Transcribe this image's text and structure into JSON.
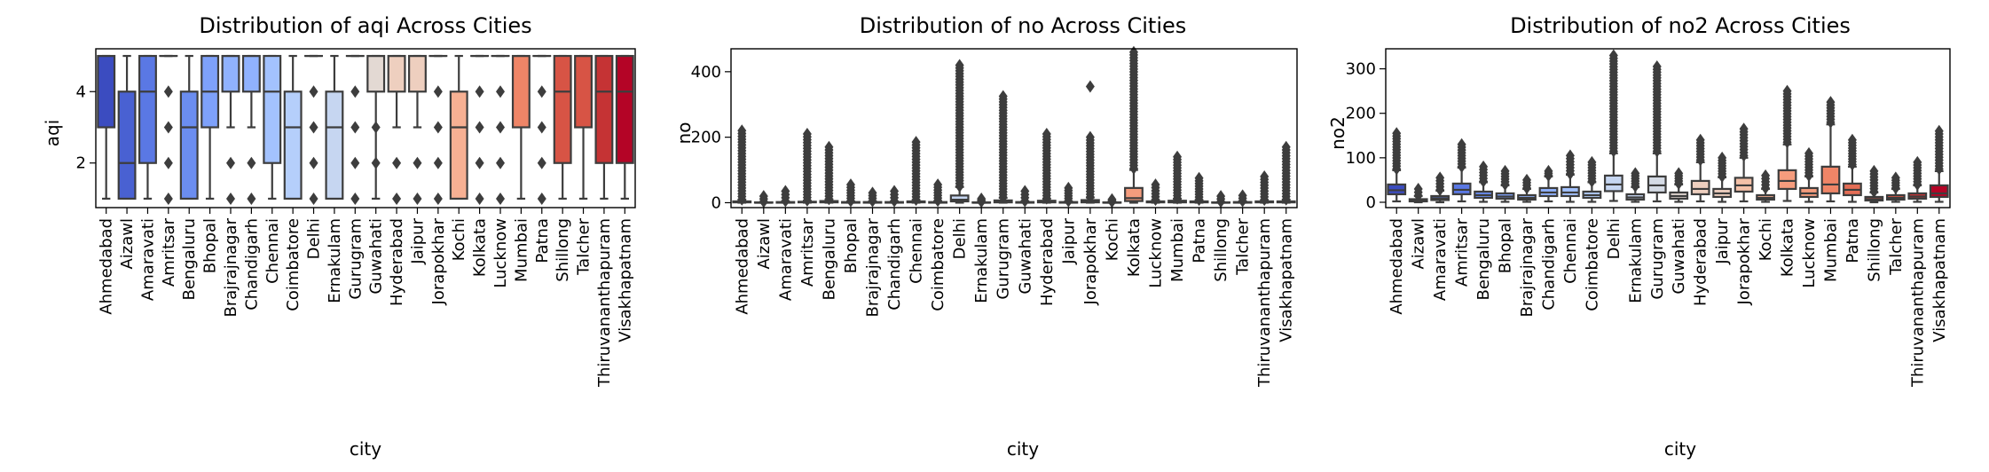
{
  "colors": {
    "box_edge": "#3d3d3d",
    "flier": "#3d3d3d",
    "palette": [
      "#3b4cc0",
      "#4961d2",
      "#5a78e4",
      "#6b8df0",
      "#7ea1fa",
      "#90b2fe",
      "#a3c2fe",
      "#b5cffb",
      "#c6d6f1",
      "#d5dbe5",
      "#e3d9d3",
      "#eecfbf",
      "#f4c1a8",
      "#f7b093",
      "#f59c7d",
      "#ef8567",
      "#e46e56",
      "#d75445",
      "#c53334",
      "#b40426"
    ]
  },
  "cities": [
    "Ahmedabad",
    "Aizawl",
    "Amaravati",
    "Amritsar",
    "Bengaluru",
    "Bhopal",
    "Brajrajnagar",
    "Chandigarh",
    "Chennai",
    "Coimbatore",
    "Delhi",
    "Ernakulam",
    "Gurugram",
    "Guwahati",
    "Hyderabad",
    "Jaipur",
    "Jorapokhar",
    "Kochi",
    "Kolkata",
    "Lucknow",
    "Mumbai",
    "Patna",
    "Shillong",
    "Talcher",
    "Thiruvananthapuram",
    "Visakhapatnam"
  ],
  "chart_data": [
    {
      "type": "box",
      "title": "Distribution of aqi Across Cities",
      "xlabel": "city",
      "ylabel": "aqi",
      "ylim": [
        0.75,
        5.2
      ],
      "yticks": [
        2,
        4
      ],
      "categories": [
        "Ahmedabad",
        "Aizawl",
        "Amaravati",
        "Amritsar",
        "Bengaluru",
        "Bhopal",
        "Brajrajnagar",
        "Chandigarh",
        "Chennai",
        "Coimbatore",
        "Delhi",
        "Ernakulam",
        "Gurugram",
        "Guwahati",
        "Hyderabad",
        "Jaipur",
        "Jorapokhar",
        "Kochi",
        "Kolkata",
        "Lucknow",
        "Mumbai",
        "Patna",
        "Shillong",
        "Talcher",
        "Thiruvananthapuram",
        "Visakhapatnam"
      ],
      "boxes": [
        {
          "min": 1,
          "q1": 3,
          "median": 5,
          "q3": 5,
          "max": 5,
          "outliers": []
        },
        {
          "min": 1,
          "q1": 1,
          "median": 2,
          "q3": 4,
          "max": 5,
          "outliers": []
        },
        {
          "min": 1,
          "q1": 2,
          "median": 4,
          "q3": 5,
          "max": 5,
          "outliers": []
        },
        {
          "min": 5,
          "q1": 5,
          "median": 5,
          "q3": 5,
          "max": 5,
          "outliers": [
            1,
            2,
            3,
            4
          ]
        },
        {
          "min": 1,
          "q1": 1,
          "median": 3,
          "q3": 4,
          "max": 5,
          "outliers": []
        },
        {
          "min": 1,
          "q1": 3,
          "median": 4,
          "q3": 5,
          "max": 5,
          "outliers": []
        },
        {
          "min": 3,
          "q1": 4,
          "median": 5,
          "q3": 5,
          "max": 5,
          "outliers": [
            1,
            2
          ]
        },
        {
          "min": 3,
          "q1": 4,
          "median": 5,
          "q3": 5,
          "max": 5,
          "outliers": [
            1,
            2
          ]
        },
        {
          "min": 1,
          "q1": 2,
          "median": 4,
          "q3": 5,
          "max": 5,
          "outliers": []
        },
        {
          "min": 1,
          "q1": 1,
          "median": 3,
          "q3": 4,
          "max": 5,
          "outliers": []
        },
        {
          "min": 5,
          "q1": 5,
          "median": 5,
          "q3": 5,
          "max": 5,
          "outliers": [
            1,
            2,
            3,
            4
          ]
        },
        {
          "min": 1,
          "q1": 1,
          "median": 3,
          "q3": 4,
          "max": 5,
          "outliers": []
        },
        {
          "min": 5,
          "q1": 5,
          "median": 5,
          "q3": 5,
          "max": 5,
          "outliers": [
            1,
            2,
            3,
            4
          ]
        },
        {
          "min": 1,
          "q1": 4,
          "median": 5,
          "q3": 5,
          "max": 5,
          "outliers": [
            2,
            3
          ]
        },
        {
          "min": 3,
          "q1": 4,
          "median": 5,
          "q3": 5,
          "max": 5,
          "outliers": [
            1,
            2
          ]
        },
        {
          "min": 3,
          "q1": 4,
          "median": 5,
          "q3": 5,
          "max": 5,
          "outliers": [
            1,
            2
          ]
        },
        {
          "min": 5,
          "q1": 5,
          "median": 5,
          "q3": 5,
          "max": 5,
          "outliers": [
            1,
            2,
            3,
            4
          ]
        },
        {
          "min": 1,
          "q1": 1,
          "median": 3,
          "q3": 4,
          "max": 5,
          "outliers": []
        },
        {
          "min": 5,
          "q1": 5,
          "median": 5,
          "q3": 5,
          "max": 5,
          "outliers": [
            1,
            2,
            3,
            4
          ]
        },
        {
          "min": 5,
          "q1": 5,
          "median": 5,
          "q3": 5,
          "max": 5,
          "outliers": [
            1,
            2,
            3,
            4
          ]
        },
        {
          "min": 1,
          "q1": 3,
          "median": 5,
          "q3": 5,
          "max": 5,
          "outliers": []
        },
        {
          "min": 5,
          "q1": 5,
          "median": 5,
          "q3": 5,
          "max": 5,
          "outliers": [
            1,
            2,
            3,
            4
          ]
        },
        {
          "min": 1,
          "q1": 2,
          "median": 4,
          "q3": 5,
          "max": 5,
          "outliers": []
        },
        {
          "min": 1,
          "q1": 3,
          "median": 5,
          "q3": 5,
          "max": 5,
          "outliers": []
        },
        {
          "min": 1,
          "q1": 2,
          "median": 4,
          "q3": 5,
          "max": 5,
          "outliers": []
        },
        {
          "min": 1,
          "q1": 2,
          "median": 4,
          "q3": 5,
          "max": 5,
          "outliers": []
        }
      ]
    },
    {
      "type": "box",
      "title": "Distribution of no Across Cities",
      "xlabel": "city",
      "ylabel": "no",
      "ylim": [
        -15,
        470
      ],
      "yticks": [
        0,
        200,
        400
      ],
      "categories": [
        "Ahmedabad",
        "Aizawl",
        "Amaravati",
        "Amritsar",
        "Bengaluru",
        "Bhopal",
        "Brajrajnagar",
        "Chandigarh",
        "Chennai",
        "Coimbatore",
        "Delhi",
        "Ernakulam",
        "Gurugram",
        "Guwahati",
        "Hyderabad",
        "Jaipur",
        "Jorapokhar",
        "Kochi",
        "Kolkata",
        "Lucknow",
        "Mumbai",
        "Patna",
        "Shillong",
        "Talcher",
        "Thiruvananthapuram",
        "Visakhapatnam"
      ],
      "boxes": [
        {
          "min": 0,
          "q1": 1,
          "median": 2,
          "q3": 4,
          "max": 9,
          "outlier_range": [
            10,
            220
          ]
        },
        {
          "min": 0,
          "q1": 0,
          "median": 0,
          "q3": 1,
          "max": 2,
          "outlier_range": [
            3,
            20
          ]
        },
        {
          "min": 0,
          "q1": 0,
          "median": 1,
          "q3": 2,
          "max": 4,
          "outlier_range": [
            5,
            35
          ]
        },
        {
          "min": 0,
          "q1": 1,
          "median": 2,
          "q3": 3,
          "max": 6,
          "outlier_range": [
            7,
            210
          ]
        },
        {
          "min": 0,
          "q1": 1,
          "median": 3,
          "q3": 5,
          "max": 10,
          "outlier_range": [
            11,
            170
          ]
        },
        {
          "min": 0,
          "q1": 0,
          "median": 1,
          "q3": 2,
          "max": 4,
          "outlier_range": [
            5,
            55
          ]
        },
        {
          "min": 0,
          "q1": 0,
          "median": 1,
          "q3": 2,
          "max": 4,
          "outlier_range": [
            5,
            30
          ]
        },
        {
          "min": 0,
          "q1": 0,
          "median": 1,
          "q3": 2,
          "max": 4,
          "outlier_range": [
            5,
            35
          ]
        },
        {
          "min": 0,
          "q1": 1,
          "median": 2,
          "q3": 4,
          "max": 8,
          "outlier_range": [
            9,
            185
          ]
        },
        {
          "min": 0,
          "q1": 0,
          "median": 1,
          "q3": 2,
          "max": 5,
          "outlier_range": [
            6,
            55
          ]
        },
        {
          "min": 0,
          "q1": 4,
          "median": 9,
          "q3": 22,
          "max": 48,
          "outlier_range": [
            50,
            420
          ]
        },
        {
          "min": 0,
          "q1": 0,
          "median": 0,
          "q3": 1,
          "max": 2,
          "outlier_range": [
            3,
            12
          ]
        },
        {
          "min": 0,
          "q1": 1,
          "median": 3,
          "q3": 7,
          "max": 15,
          "outlier_range": [
            16,
            325
          ]
        },
        {
          "min": 0,
          "q1": 0,
          "median": 1,
          "q3": 2,
          "max": 4,
          "outlier_range": [
            5,
            35
          ]
        },
        {
          "min": 0,
          "q1": 1,
          "median": 3,
          "q3": 6,
          "max": 12,
          "outlier_range": [
            13,
            210
          ]
        },
        {
          "min": 0,
          "q1": 0,
          "median": 1,
          "q3": 2,
          "max": 4,
          "outlier_range": [
            5,
            45
          ]
        },
        {
          "min": 0,
          "q1": 1,
          "median": 3,
          "q3": 8,
          "max": 16,
          "outlier_range": [
            17,
            200
          ],
          "extra_outliers": [
            355
          ]
        },
        {
          "min": 0,
          "q1": 0,
          "median": 0,
          "q3": 1,
          "max": 2,
          "outlier_range": [
            3,
            10
          ]
        },
        {
          "min": 0,
          "q1": 5,
          "median": 14,
          "q3": 45,
          "max": 100,
          "outlier_range": [
            105,
            460
          ]
        },
        {
          "min": 0,
          "q1": 1,
          "median": 2,
          "q3": 4,
          "max": 8,
          "outlier_range": [
            9,
            55
          ]
        },
        {
          "min": 0,
          "q1": 1,
          "median": 3,
          "q3": 6,
          "max": 12,
          "outlier_range": [
            13,
            140
          ]
        },
        {
          "min": 0,
          "q1": 1,
          "median": 2,
          "q3": 4,
          "max": 8,
          "outlier_range": [
            9,
            75
          ]
        },
        {
          "min": 0,
          "q1": 0,
          "median": 0,
          "q3": 1,
          "max": 2,
          "outlier_range": [
            3,
            20
          ]
        },
        {
          "min": 0,
          "q1": 0,
          "median": 1,
          "q3": 2,
          "max": 4,
          "outlier_range": [
            5,
            22
          ]
        },
        {
          "min": 0,
          "q1": 1,
          "median": 2,
          "q3": 4,
          "max": 8,
          "outlier_range": [
            9,
            80
          ]
        },
        {
          "min": 0,
          "q1": 1,
          "median": 2,
          "q3": 4,
          "max": 9,
          "outlier_range": [
            10,
            170
          ]
        }
      ]
    },
    {
      "type": "box",
      "title": "Distribution of no2 Across Cities",
      "xlabel": "city",
      "ylabel": "no2",
      "ylim": [
        -12,
        345
      ],
      "yticks": [
        0,
        100,
        200,
        300
      ],
      "categories": [
        "Ahmedabad",
        "Aizawl",
        "Amaravati",
        "Amritsar",
        "Bengaluru",
        "Bhopal",
        "Brajrajnagar",
        "Chandigarh",
        "Chennai",
        "Coimbatore",
        "Delhi",
        "Ernakulam",
        "Gurugram",
        "Guwahati",
        "Hyderabad",
        "Jaipur",
        "Jorapokhar",
        "Kochi",
        "Kolkata",
        "Lucknow",
        "Mumbai",
        "Patna",
        "Shillong",
        "Talcher",
        "Thiruvananthapuram",
        "Visakhapatnam"
      ],
      "boxes": [
        {
          "min": 2,
          "q1": 18,
          "median": 27,
          "q3": 40,
          "max": 72,
          "outlier_range": [
            75,
            155
          ]
        },
        {
          "min": 0,
          "q1": 2,
          "median": 4,
          "q3": 7,
          "max": 14,
          "outlier_range": [
            15,
            30
          ]
        },
        {
          "min": 0,
          "q1": 5,
          "median": 9,
          "q3": 14,
          "max": 26,
          "outlier_range": [
            28,
            55
          ]
        },
        {
          "min": 2,
          "q1": 18,
          "median": 28,
          "q3": 42,
          "max": 78,
          "outlier_range": [
            80,
            130
          ]
        },
        {
          "min": 1,
          "q1": 10,
          "median": 16,
          "q3": 24,
          "max": 45,
          "outlier_range": [
            47,
            80
          ]
        },
        {
          "min": 1,
          "q1": 8,
          "median": 13,
          "q3": 20,
          "max": 38,
          "outlier_range": [
            40,
            70
          ]
        },
        {
          "min": 1,
          "q1": 6,
          "median": 10,
          "q3": 16,
          "max": 30,
          "outlier_range": [
            32,
            50
          ]
        },
        {
          "min": 2,
          "q1": 14,
          "median": 22,
          "q3": 32,
          "max": 58,
          "outlier_range": [
            60,
            70
          ]
        },
        {
          "min": 1,
          "q1": 14,
          "median": 22,
          "q3": 34,
          "max": 62,
          "outlier_range": [
            64,
            105
          ]
        },
        {
          "min": 1,
          "q1": 10,
          "median": 16,
          "q3": 24,
          "max": 45,
          "outlier_range": [
            47,
            90
          ]
        },
        {
          "min": 3,
          "q1": 25,
          "median": 40,
          "q3": 60,
          "max": 110,
          "outlier_range": [
            115,
            330
          ]
        },
        {
          "min": 1,
          "q1": 6,
          "median": 11,
          "q3": 18,
          "max": 34,
          "outlier_range": [
            36,
            65
          ]
        },
        {
          "min": 2,
          "q1": 22,
          "median": 38,
          "q3": 58,
          "max": 110,
          "outlier_range": [
            115,
            305
          ]
        },
        {
          "min": 1,
          "q1": 8,
          "median": 14,
          "q3": 22,
          "max": 40,
          "outlier_range": [
            42,
            65
          ]
        },
        {
          "min": 2,
          "q1": 18,
          "median": 30,
          "q3": 48,
          "max": 90,
          "outlier_range": [
            95,
            140
          ]
        },
        {
          "min": 1,
          "q1": 12,
          "median": 20,
          "q3": 30,
          "max": 56,
          "outlier_range": [
            58,
            100
          ]
        },
        {
          "min": 2,
          "q1": 24,
          "median": 38,
          "q3": 55,
          "max": 100,
          "outlier_range": [
            105,
            165
          ]
        },
        {
          "min": 1,
          "q1": 6,
          "median": 10,
          "q3": 16,
          "max": 30,
          "outlier_range": [
            32,
            60
          ]
        },
        {
          "min": 3,
          "q1": 30,
          "median": 48,
          "q3": 72,
          "max": 130,
          "outlier_range": [
            135,
            250
          ]
        },
        {
          "min": 1,
          "q1": 12,
          "median": 20,
          "q3": 32,
          "max": 58,
          "outlier_range": [
            60,
            110
          ]
        },
        {
          "min": 2,
          "q1": 20,
          "median": 40,
          "q3": 80,
          "max": 175,
          "outlier_range": [
            180,
            225
          ]
        },
        {
          "min": 1,
          "q1": 16,
          "median": 28,
          "q3": 42,
          "max": 80,
          "outlier_range": [
            85,
            140
          ]
        },
        {
          "min": 0,
          "q1": 4,
          "median": 7,
          "q3": 12,
          "max": 22,
          "outlier_range": [
            24,
            70
          ]
        },
        {
          "min": 1,
          "q1": 6,
          "median": 10,
          "q3": 16,
          "max": 30,
          "outlier_range": [
            32,
            55
          ]
        },
        {
          "min": 1,
          "q1": 8,
          "median": 13,
          "q3": 20,
          "max": 38,
          "outlier_range": [
            40,
            90
          ]
        },
        {
          "min": 1,
          "q1": 12,
          "median": 20,
          "q3": 38,
          "max": 70,
          "outlier_range": [
            75,
            160
          ]
        }
      ]
    }
  ]
}
